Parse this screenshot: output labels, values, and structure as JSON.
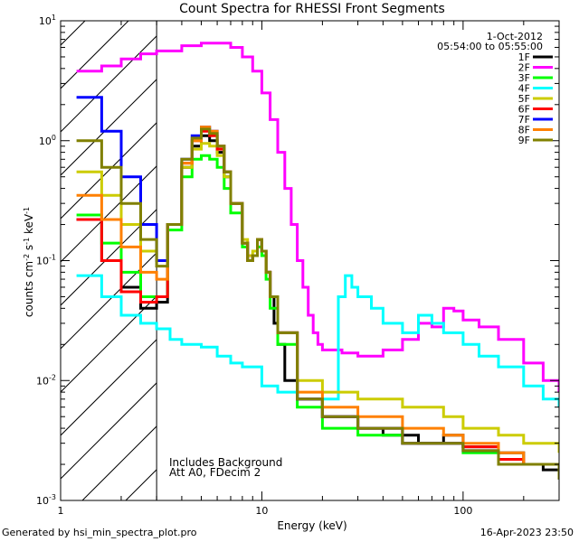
{
  "chart_data": {
    "type": "line",
    "title": "Count Spectra for RHESSI Front Segments",
    "xlabel": "Energy (keV)",
    "ylabel": "counts cm-2 s-1 keV-1",
    "xscale": "log",
    "yscale": "log",
    "xlim": [
      1,
      300
    ],
    "ylim": [
      0.001,
      10
    ],
    "x_tick_labels": [
      "1",
      "10",
      "100"
    ],
    "y_tick_labels": [
      {
        "base": "10",
        "exp": "-3"
      },
      {
        "base": "10",
        "exp": "-2"
      },
      {
        "base": "10",
        "exp": "-1"
      },
      {
        "base": "10",
        "exp": "0"
      },
      {
        "base": "10",
        "exp": "1"
      }
    ],
    "grid": false,
    "legend_position": "top-right",
    "header": {
      "date": "1-Oct-2012",
      "time_range": "05:54:00 to 05:55:00"
    },
    "hatched_region": [
      1,
      3
    ],
    "annotations": [
      "Includes Background",
      "Att A0, FDecim 2"
    ],
    "series": [
      {
        "name": "1F",
        "color": "#000000",
        "x": [
          1.2,
          1.6,
          2.0,
          2.5,
          3.0,
          3.4,
          4.0,
          4.5,
          5.0,
          5.5,
          6.0,
          6.5,
          7.0,
          8.0,
          8.5,
          9.0,
          9.5,
          10.0,
          10.5,
          11.0,
          11.5,
          12.0,
          13.0,
          15.0,
          20.0,
          30.0,
          40.0,
          60.0,
          80.0,
          100.0,
          150.0,
          200.0,
          250.0,
          300.0
        ],
        "y": [
          0.22,
          0.1,
          0.06,
          0.04,
          0.045,
          0.2,
          0.6,
          0.9,
          1.1,
          1.0,
          0.8,
          0.5,
          0.3,
          0.14,
          0.1,
          0.11,
          0.15,
          0.12,
          0.08,
          0.05,
          0.03,
          0.02,
          0.01,
          0.007,
          0.005,
          0.004,
          0.0035,
          0.003,
          0.0035,
          0.0028,
          0.0025,
          0.002,
          0.0018,
          0.0015
        ]
      },
      {
        "name": "2F",
        "color": "#ff00ff",
        "x": [
          1.2,
          1.6,
          2.0,
          2.5,
          3.0,
          4.0,
          5.0,
          6.0,
          7.0,
          8.0,
          9.0,
          10.0,
          11.0,
          12.0,
          13.0,
          14.0,
          15.0,
          16.0,
          17.0,
          18.0,
          19.0,
          20.0,
          25.0,
          30.0,
          40.0,
          50.0,
          60.0,
          70.0,
          80.0,
          90.0,
          100.0,
          120.0,
          150.0,
          200.0,
          250.0,
          300.0
        ],
        "y": [
          3.8,
          4.2,
          4.8,
          5.3,
          5.6,
          6.2,
          6.5,
          6.5,
          6.0,
          5.0,
          3.8,
          2.5,
          1.5,
          0.8,
          0.4,
          0.2,
          0.1,
          0.06,
          0.035,
          0.025,
          0.02,
          0.018,
          0.017,
          0.016,
          0.018,
          0.022,
          0.03,
          0.028,
          0.04,
          0.038,
          0.032,
          0.028,
          0.022,
          0.014,
          0.01,
          0.008
        ]
      },
      {
        "name": "3F",
        "color": "#00ff00",
        "x": [
          1.2,
          1.6,
          2.0,
          2.5,
          3.0,
          3.4,
          4.0,
          4.5,
          5.0,
          5.5,
          6.0,
          6.5,
          7.0,
          8.0,
          8.5,
          9.0,
          9.5,
          10.0,
          10.5,
          11.0,
          12.0,
          15.0,
          20.0,
          30.0,
          50.0,
          80.0,
          100.0,
          150.0,
          200.0,
          300.0
        ],
        "y": [
          0.24,
          0.14,
          0.08,
          0.05,
          0.05,
          0.18,
          0.5,
          0.7,
          0.75,
          0.7,
          0.6,
          0.4,
          0.25,
          0.13,
          0.1,
          0.11,
          0.13,
          0.11,
          0.07,
          0.04,
          0.02,
          0.006,
          0.004,
          0.0035,
          0.003,
          0.003,
          0.0025,
          0.002,
          0.002,
          0.0015
        ]
      },
      {
        "name": "4F",
        "color": "#00ffff",
        "x": [
          1.2,
          1.6,
          2.0,
          2.5,
          3.0,
          3.5,
          4.0,
          5.0,
          6.0,
          7.0,
          8.0,
          10.0,
          12.0,
          15.0,
          20.0,
          24.0,
          26.0,
          28.0,
          30.0,
          35.0,
          40.0,
          50.0,
          60.0,
          70.0,
          80.0,
          100.0,
          120.0,
          150.0,
          200.0,
          250.0,
          300.0
        ],
        "y": [
          0.075,
          0.05,
          0.035,
          0.03,
          0.027,
          0.022,
          0.02,
          0.019,
          0.016,
          0.014,
          0.013,
          0.009,
          0.008,
          0.007,
          0.007,
          0.05,
          0.075,
          0.06,
          0.05,
          0.04,
          0.03,
          0.025,
          0.035,
          0.03,
          0.025,
          0.02,
          0.016,
          0.013,
          0.009,
          0.007,
          0.006
        ]
      },
      {
        "name": "5F",
        "color": "#cccc00",
        "x": [
          1.2,
          1.6,
          2.0,
          2.5,
          3.0,
          3.4,
          4.0,
          4.5,
          5.0,
          5.5,
          6.0,
          6.5,
          7.0,
          8.0,
          8.5,
          9.0,
          9.5,
          10.0,
          10.5,
          11.0,
          12.0,
          15.0,
          20.0,
          30.0,
          50.0,
          80.0,
          100.0,
          150.0,
          200.0,
          300.0
        ],
        "y": [
          0.55,
          0.35,
          0.2,
          0.12,
          0.1,
          0.2,
          0.6,
          0.85,
          0.95,
          0.9,
          0.75,
          0.5,
          0.3,
          0.15,
          0.11,
          0.12,
          0.15,
          0.12,
          0.08,
          0.05,
          0.025,
          0.01,
          0.008,
          0.007,
          0.006,
          0.005,
          0.004,
          0.0035,
          0.003,
          0.0025
        ]
      },
      {
        "name": "6F",
        "color": "#ff0000",
        "x": [
          1.2,
          1.6,
          2.0,
          2.5,
          3.0,
          3.4,
          4.0,
          4.5,
          5.0,
          5.5,
          6.0,
          6.5,
          7.0,
          8.0,
          8.5,
          9.0,
          9.5,
          10.0,
          10.5,
          11.0,
          12.0,
          15.0,
          20.0,
          30.0,
          50.0,
          80.0,
          100.0,
          150.0,
          200.0,
          300.0
        ],
        "y": [
          0.22,
          0.1,
          0.055,
          0.045,
          0.05,
          0.2,
          0.65,
          1.0,
          1.2,
          1.1,
          0.85,
          0.55,
          0.3,
          0.14,
          0.1,
          0.11,
          0.15,
          0.12,
          0.08,
          0.05,
          0.025,
          0.007,
          0.005,
          0.004,
          0.003,
          0.003,
          0.0028,
          0.0022,
          0.002,
          0.0015
        ]
      },
      {
        "name": "7F",
        "color": "#0000ff",
        "x": [
          1.2,
          1.6,
          2.0,
          2.5,
          3.0,
          3.4,
          4.0,
          4.5,
          5.0,
          5.5,
          6.0,
          6.5,
          7.0,
          8.0,
          8.5,
          9.0,
          9.5,
          10.0,
          10.5,
          11.0,
          12.0,
          15.0,
          20.0,
          30.0,
          50.0,
          80.0,
          100.0,
          150.0,
          200.0,
          300.0
        ],
        "y": [
          2.3,
          1.2,
          0.5,
          0.2,
          0.1,
          0.2,
          0.7,
          1.1,
          1.3,
          1.2,
          0.9,
          0.55,
          0.3,
          0.14,
          0.1,
          0.11,
          0.15,
          0.12,
          0.08,
          0.05,
          0.025,
          0.007,
          0.005,
          0.004,
          0.003,
          0.003,
          0.0026,
          0.002,
          0.002,
          0.0015
        ]
      },
      {
        "name": "8F",
        "color": "#ff8000",
        "x": [
          1.2,
          1.6,
          2.0,
          2.5,
          3.0,
          3.4,
          4.0,
          4.5,
          5.0,
          5.5,
          6.0,
          6.5,
          7.0,
          8.0,
          8.5,
          9.0,
          9.5,
          10.0,
          10.5,
          11.0,
          12.0,
          15.0,
          20.0,
          30.0,
          50.0,
          80.0,
          100.0,
          150.0,
          200.0,
          300.0
        ],
        "y": [
          0.35,
          0.22,
          0.13,
          0.08,
          0.07,
          0.2,
          0.65,
          1.0,
          1.3,
          1.2,
          0.9,
          0.55,
          0.3,
          0.14,
          0.1,
          0.11,
          0.15,
          0.12,
          0.08,
          0.05,
          0.025,
          0.008,
          0.006,
          0.005,
          0.004,
          0.0035,
          0.003,
          0.0025,
          0.002,
          0.0018
        ]
      },
      {
        "name": "9F",
        "color": "#808000",
        "x": [
          1.2,
          1.6,
          2.0,
          2.5,
          3.0,
          3.4,
          4.0,
          4.5,
          5.0,
          5.5,
          6.0,
          6.5,
          7.0,
          8.0,
          8.5,
          9.0,
          9.5,
          10.0,
          10.5,
          11.0,
          12.0,
          15.0,
          20.0,
          30.0,
          50.0,
          80.0,
          100.0,
          150.0,
          200.0,
          300.0
        ],
        "y": [
          1.0,
          0.6,
          0.3,
          0.15,
          0.09,
          0.2,
          0.7,
          1.05,
          1.25,
          1.15,
          0.9,
          0.55,
          0.3,
          0.14,
          0.1,
          0.11,
          0.15,
          0.12,
          0.08,
          0.05,
          0.025,
          0.007,
          0.005,
          0.004,
          0.003,
          0.003,
          0.0026,
          0.002,
          0.002,
          0.0015
        ]
      }
    ]
  },
  "footer": {
    "generated_by": "Generated by hsi_min_spectra_plot.pro",
    "timestamp": "16-Apr-2023 23:50"
  }
}
